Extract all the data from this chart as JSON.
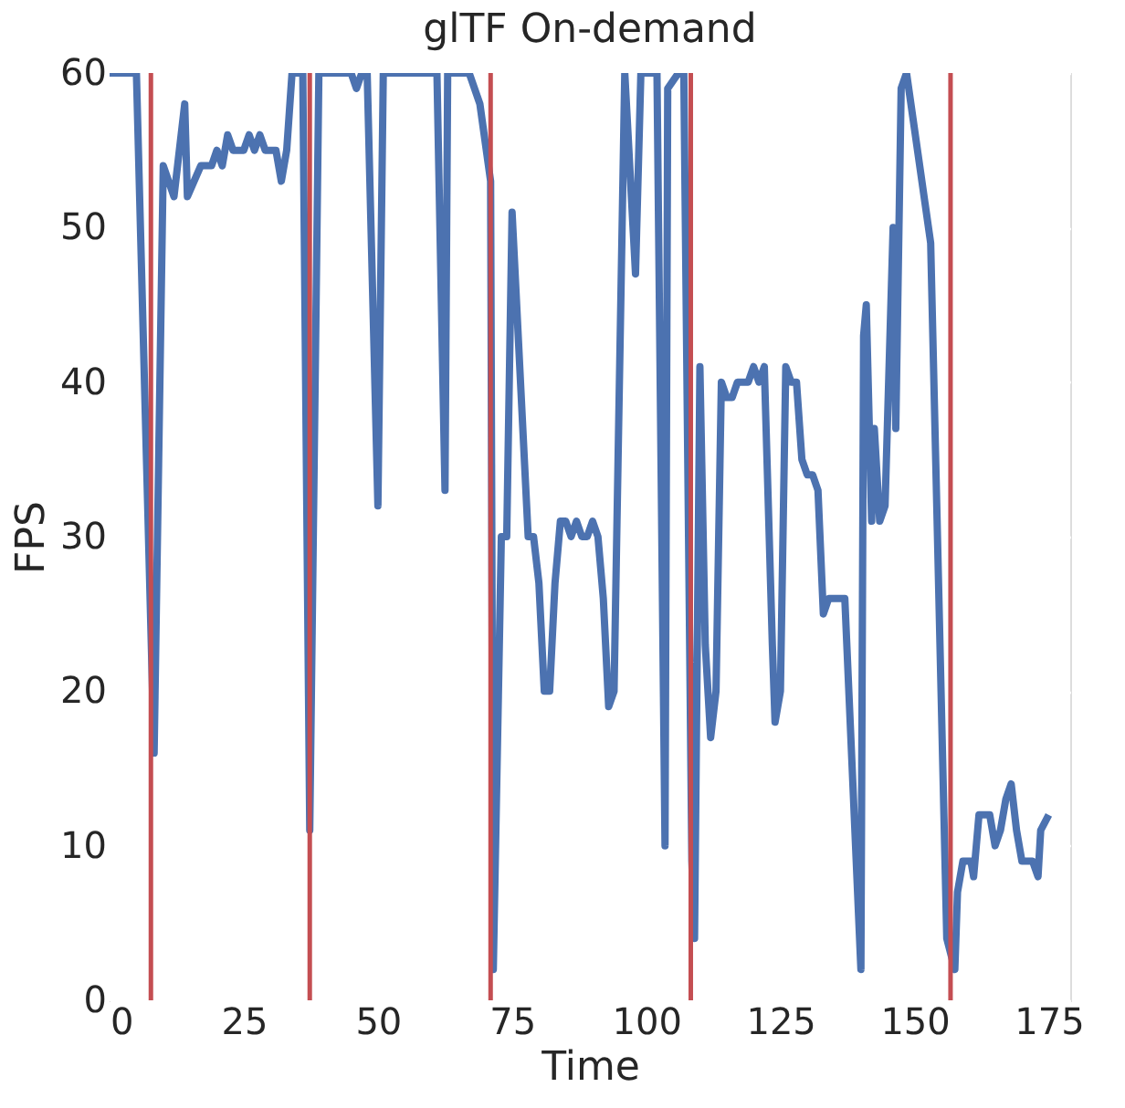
{
  "chart_data": {
    "type": "line",
    "title": "glTF On-demand",
    "xlabel": "Time",
    "ylabel": "FPS",
    "x": [
      0,
      5,
      8.3,
      10,
      12,
      14,
      14.5,
      17,
      19,
      20,
      21,
      22,
      23,
      25,
      26,
      27,
      28,
      29,
      31,
      32,
      33,
      34,
      36,
      37.3,
      39,
      45,
      46,
      47,
      48,
      50,
      51,
      61,
      62.5,
      63,
      67,
      69,
      71,
      71.5,
      73,
      74,
      75,
      78,
      79,
      80,
      81,
      82,
      83,
      84,
      85,
      86,
      87,
      88,
      89,
      90,
      91,
      92,
      93,
      94,
      95.5,
      96,
      98,
      99,
      102,
      103.5,
      104,
      106,
      107,
      108.5,
      109,
      110,
      111,
      112,
      113,
      114,
      115,
      116,
      117,
      119,
      120,
      121,
      122,
      123.5,
      124,
      125,
      126,
      127,
      128,
      129,
      130,
      131,
      132,
      133,
      134,
      137,
      140,
      140.5,
      141,
      142,
      142.5,
      143.5,
      144.5,
      146,
      146.5,
      147.5,
      148.5,
      153,
      156,
      157.5,
      158,
      159,
      160.5,
      161,
      162,
      164,
      165,
      166,
      167,
      168,
      169,
      170,
      172,
      173,
      173.5,
      175
    ],
    "series": [
      {
        "color": "#4c72b0",
        "values": [
          60,
          60,
          16,
          54,
          52,
          58,
          52,
          54,
          54,
          55,
          54,
          56,
          55,
          55,
          56,
          55,
          56,
          55,
          55,
          53,
          55,
          60,
          60,
          11,
          60,
          60,
          59,
          60,
          60,
          32,
          60,
          60,
          33,
          60,
          60,
          58,
          53,
          2,
          30,
          30,
          51,
          30,
          30,
          27,
          20,
          20,
          27,
          31,
          31,
          30,
          31,
          30,
          30,
          31,
          30,
          26,
          19,
          20,
          50,
          60,
          47,
          60,
          60,
          10,
          59,
          60,
          60,
          9,
          4,
          41,
          23,
          17,
          20,
          40,
          39,
          39,
          40,
          40,
          41,
          40,
          41,
          23,
          18,
          20,
          41,
          40,
          40,
          35,
          34,
          34,
          33,
          25,
          26,
          26,
          2,
          43,
          45,
          31,
          37,
          31,
          32,
          50,
          37,
          59,
          60,
          49,
          4,
          2,
          7,
          9,
          9,
          8,
          12,
          12,
          10,
          11,
          13,
          14,
          11,
          9,
          9,
          8,
          11,
          12
        ]
      }
    ],
    "xlim": [
      0,
      179
    ],
    "xticks": [
      0,
      25,
      50,
      75,
      100,
      125,
      150,
      175
    ],
    "ylim": [
      0,
      60
    ],
    "yticks": [
      0,
      10,
      20,
      30,
      40,
      50,
      60
    ],
    "grid": true,
    "line_style": "solid",
    "marker": "none",
    "ref_lines": [
      {
        "axis": "x",
        "value": 7.7,
        "color": "#c44e52"
      },
      {
        "axis": "x",
        "value": 37.3,
        "color": "#c44e52"
      },
      {
        "axis": "x",
        "value": 71,
        "color": "#c44e52"
      },
      {
        "axis": "x",
        "value": 108.3,
        "color": "#c44e52"
      },
      {
        "axis": "x",
        "value": 156.7,
        "color": "#c44e52"
      }
    ]
  }
}
